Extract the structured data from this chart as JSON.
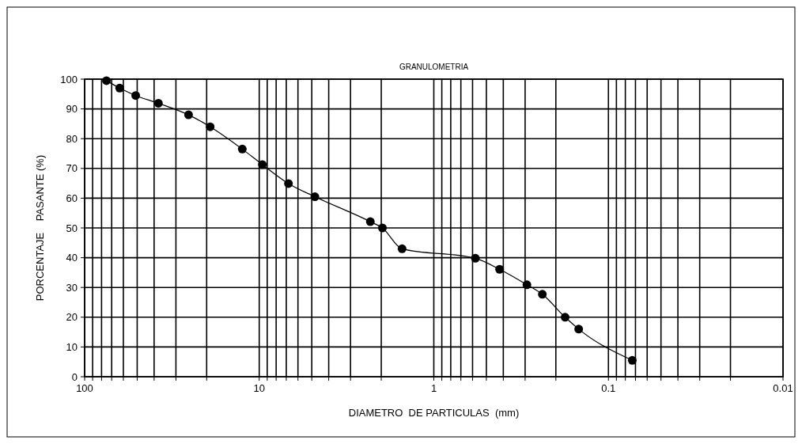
{
  "chart_data": {
    "type": "line",
    "title": "GRANULOMETRIA",
    "xlabel": "DIAMETRO  DE PARTICULAS  (mm)",
    "ylabel": "PORCENTAJE    PASANTE (%)",
    "log": "x",
    "grid": true,
    "marker": "circle",
    "line_style": "solid",
    "x": [
      75,
      63,
      51,
      37.8,
      25.4,
      19.1,
      12.5,
      9.6,
      6.8,
      4.8,
      2.31,
      1.97,
      1.52,
      0.578,
      0.42,
      0.293,
      0.239,
      0.177,
      0.148,
      0.073
    ],
    "series": [
      {
        "color": "#000000",
        "values": [
          99.5,
          97,
          94.5,
          91.9,
          88,
          84,
          76.5,
          71.3,
          64.9,
          60.5,
          52.1,
          50,
          43,
          39.8,
          36.1,
          30.9,
          27.7,
          20,
          16,
          5.5
        ]
      }
    ],
    "xlim": [
      100,
      0.01
    ],
    "xticks": [
      100,
      {
        "value": 90,
        "label": null
      },
      {
        "value": 80,
        "label": null
      },
      {
        "value": 70,
        "label": null
      },
      {
        "value": 60,
        "label": null
      },
      {
        "value": 50,
        "label": null
      },
      {
        "value": 40,
        "label": null
      },
      {
        "value": 30,
        "label": null
      },
      {
        "value": 20,
        "label": null
      },
      10,
      {
        "value": 9,
        "label": null
      },
      {
        "value": 8,
        "label": null
      },
      {
        "value": 7,
        "label": null
      },
      {
        "value": 6,
        "label": null
      },
      {
        "value": 5,
        "label": null
      },
      {
        "value": 4,
        "label": null
      },
      {
        "value": 3,
        "label": null
      },
      {
        "value": 2,
        "label": null
      },
      1,
      {
        "value": 0.9,
        "label": null
      },
      {
        "value": 0.8,
        "label": null
      },
      {
        "value": 0.7,
        "label": null
      },
      {
        "value": 0.6,
        "label": null
      },
      {
        "value": 0.5,
        "label": null
      },
      {
        "value": 0.4,
        "label": null
      },
      {
        "value": 0.3,
        "label": null
      },
      {
        "value": 0.2,
        "label": null
      },
      0.1,
      {
        "value": 0.09,
        "label": null
      },
      {
        "value": 0.08,
        "label": null
      },
      {
        "value": 0.07,
        "label": null
      },
      {
        "value": 0.06,
        "label": null
      },
      {
        "value": 0.05,
        "label": null
      },
      {
        "value": 0.04,
        "label": null
      },
      {
        "value": 0.03,
        "label": null
      },
      {
        "value": 0.02,
        "label": null
      },
      0.01
    ],
    "ylim": [
      0,
      100
    ],
    "yticks": [
      0,
      10,
      20,
      30,
      40,
      50,
      60,
      70,
      80,
      90,
      100
    ]
  }
}
